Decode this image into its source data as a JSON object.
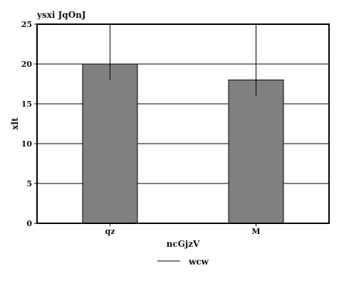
{
  "chart_data": {
    "type": "bar",
    "title": "ysxi JqOnJ",
    "xlabel": "ncGjzV",
    "ylabel": "xlt",
    "categories": [
      "qz",
      "M"
    ],
    "series": [
      {
        "name": "wcw",
        "values": [
          20,
          18
        ],
        "error_bars": [
          {
            "upper": 25,
            "lower": 18
          },
          {
            "upper": 25,
            "lower": 16
          }
        ]
      }
    ],
    "ylim": [
      0,
      25
    ],
    "yticks": [
      0,
      5,
      10,
      15,
      20,
      25
    ],
    "grid": true,
    "legend_position": "bottom-center",
    "colors": {
      "bar_fill": "#808080",
      "bar_stroke": "#000000",
      "grid": "#000000",
      "axis": "#000000",
      "error_bar": "#000000",
      "legend_line": "#000000"
    }
  }
}
